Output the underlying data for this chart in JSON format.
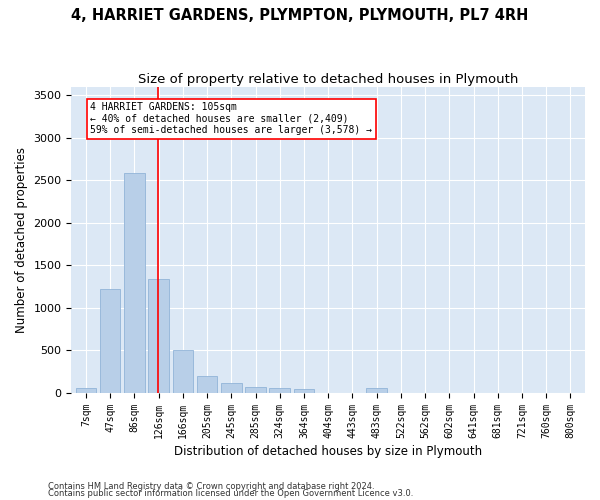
{
  "title": "4, HARRIET GARDENS, PLYMPTON, PLYMOUTH, PL7 4RH",
  "subtitle": "Size of property relative to detached houses in Plymouth",
  "xlabel": "Distribution of detached houses by size in Plymouth",
  "ylabel": "Number of detached properties",
  "footnote1": "Contains HM Land Registry data © Crown copyright and database right 2024.",
  "footnote2": "Contains public sector information licensed under the Open Government Licence v3.0.",
  "bar_labels": [
    "7sqm",
    "47sqm",
    "86sqm",
    "126sqm",
    "166sqm",
    "205sqm",
    "245sqm",
    "285sqm",
    "324sqm",
    "364sqm",
    "404sqm",
    "443sqm",
    "483sqm",
    "522sqm",
    "562sqm",
    "602sqm",
    "641sqm",
    "681sqm",
    "721sqm",
    "760sqm",
    "800sqm"
  ],
  "bar_values": [
    55,
    1220,
    2580,
    1340,
    500,
    195,
    110,
    60,
    55,
    40,
    0,
    0,
    50,
    0,
    0,
    0,
    0,
    0,
    0,
    0,
    0
  ],
  "bar_color": "#b8cfe8",
  "bar_edgecolor": "#92b4d8",
  "ylim": [
    0,
    3600
  ],
  "yticks": [
    0,
    500,
    1000,
    1500,
    2000,
    2500,
    3000,
    3500
  ],
  "red_line_x": 2.975,
  "annotation_text": "4 HARRIET GARDENS: 105sqm\n← 40% of detached houses are smaller (2,409)\n59% of semi-detached houses are larger (3,578) →",
  "bg_color": "#dce8f5",
  "grid_color": "#ffffff",
  "fig_bg_color": "#ffffff",
  "title_fontsize": 10.5,
  "subtitle_fontsize": 9.5,
  "axis_label_fontsize": 8.5,
  "tick_fontsize": 7,
  "footnote_fontsize": 6,
  "annotation_fontsize": 7
}
